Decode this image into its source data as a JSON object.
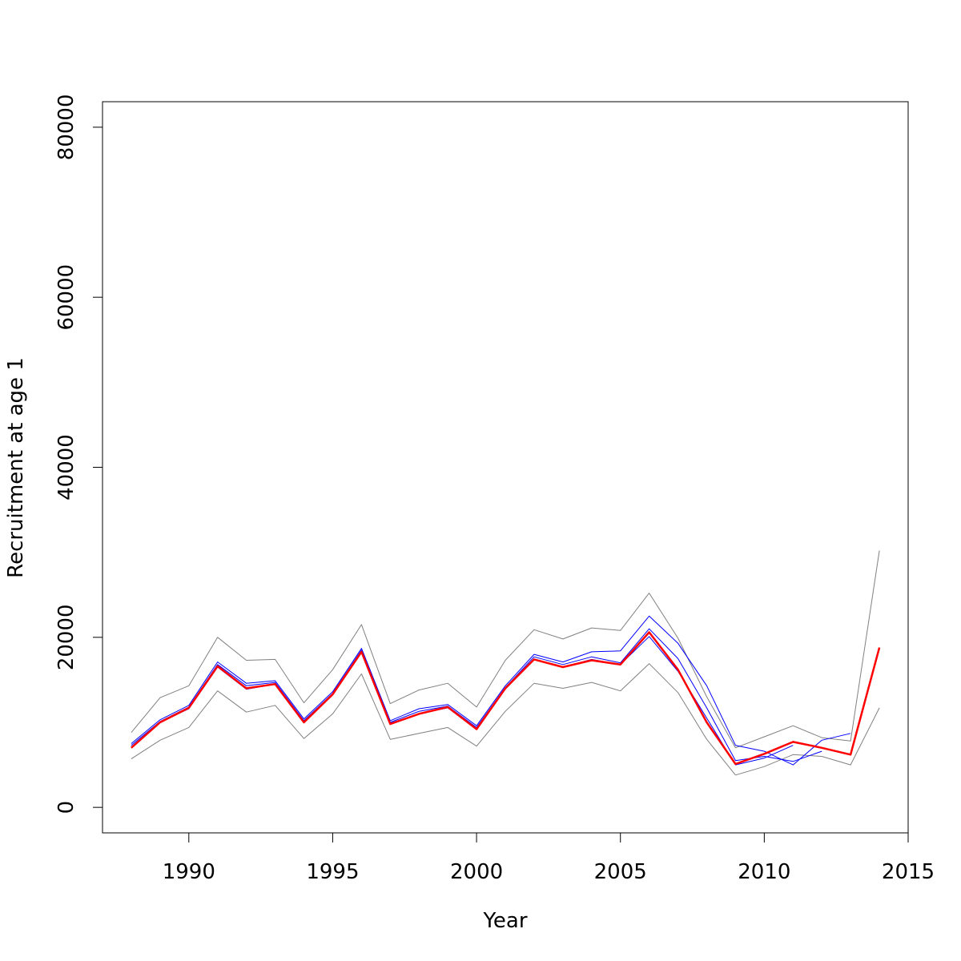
{
  "chart_data": {
    "type": "line",
    "title": "",
    "xlabel": "Year",
    "ylabel": "Recruitment at age 1",
    "xlim": [
      1987,
      2015
    ],
    "ylim": [
      -3000,
      83000
    ],
    "x_ticks": [
      1990,
      1995,
      2000,
      2005,
      2010,
      2015
    ],
    "x_tick_labels": [
      "1990",
      "1995",
      "2000",
      "2005",
      "2010",
      "2015"
    ],
    "y_ticks": [
      0,
      20000,
      40000,
      60000,
      80000
    ],
    "y_tick_labels": [
      "0",
      "20000",
      "40000",
      "60000",
      "80000"
    ],
    "grid": false,
    "legend": "none",
    "series": [
      {
        "color": "#ff0000",
        "x": [
          1988,
          1989,
          1990,
          1991,
          1992,
          1993,
          1994,
          1995,
          1996,
          1997,
          1998,
          1999,
          2000,
          2001,
          2002,
          2003,
          2004,
          2005,
          2006,
          2007,
          2008,
          2009,
          2010,
          2011,
          2012,
          2013,
          2014
        ],
        "values": [
          7000,
          10000,
          11700,
          16600,
          14000,
          14500,
          10000,
          13300,
          18300,
          9800,
          11000,
          11800,
          9200,
          14000,
          17400,
          16500,
          17300,
          16800,
          20600,
          16200,
          10000,
          5100,
          6300,
          7700,
          7000,
          6200,
          18800
        ]
      },
      {
        "color": "#808080",
        "x": [
          1988,
          1989,
          1990,
          1991,
          1992,
          1993,
          1994,
          1995,
          1996,
          1997,
          1998,
          1999,
          2000,
          2001,
          2002,
          2003,
          2004,
          2005,
          2006,
          2007,
          2008,
          2009,
          2010,
          2011,
          2012,
          2013,
          2014
        ],
        "values": [
          8800,
          12900,
          14300,
          20000,
          17300,
          17400,
          12300,
          16200,
          21500,
          12200,
          13800,
          14600,
          11800,
          17300,
          20900,
          19800,
          21100,
          20800,
          25200,
          19900,
          13000,
          7000,
          8300,
          9600,
          8200,
          7800,
          30200
        ]
      },
      {
        "color": "#808080",
        "x": [
          1988,
          1989,
          1990,
          1991,
          1992,
          1993,
          1994,
          1995,
          1996,
          1997,
          1998,
          1999,
          2000,
          2001,
          2002,
          2003,
          2004,
          2005,
          2006,
          2007,
          2008,
          2009,
          2010,
          2011,
          2012,
          2013,
          2014
        ],
        "values": [
          5700,
          7900,
          9400,
          13700,
          11200,
          12000,
          8100,
          11000,
          15700,
          8000,
          8700,
          9400,
          7200,
          11300,
          14600,
          14000,
          14700,
          13700,
          16900,
          13500,
          8000,
          3800,
          4800,
          6200,
          6000,
          5000,
          11700
        ]
      },
      {
        "color": "#0000ff",
        "x": [
          1988,
          1989,
          1990,
          1991,
          1992,
          1993,
          1994,
          1995,
          1996,
          1997,
          1998,
          1999,
          2000,
          2001,
          2002,
          2003,
          2004,
          2005,
          2006,
          2007,
          2008,
          2009,
          2010,
          2011,
          2012,
          2013
        ],
        "values": [
          7500,
          10300,
          12000,
          17100,
          14600,
          14900,
          10400,
          13600,
          18700,
          10200,
          11600,
          12100,
          9600,
          14300,
          18000,
          17100,
          18300,
          18400,
          22500,
          19300,
          14300,
          7300,
          6600,
          5000,
          7900,
          8700
        ]
      },
      {
        "color": "#0000ff",
        "x": [
          1988,
          1989,
          1990,
          1991,
          1992,
          1993,
          1994,
          1995,
          1996,
          1997,
          1998,
          1999,
          2000,
          2001,
          2002,
          2003,
          2004,
          2005,
          2006,
          2007,
          2008,
          2009,
          2010,
          2011,
          2012
        ],
        "values": [
          7300,
          10100,
          11800,
          16800,
          14300,
          14700,
          10200,
          13400,
          18500,
          10000,
          11300,
          11900,
          9400,
          14100,
          17700,
          16800,
          17700,
          17000,
          21000,
          17500,
          11700,
          5500,
          6000,
          5400,
          6600
        ]
      },
      {
        "color": "#0000ff",
        "x": [
          1988,
          1989,
          1990,
          1991,
          1992,
          1993,
          1994,
          1995,
          1996,
          1997,
          1998,
          1999,
          2000,
          2001,
          2002,
          2003,
          2004,
          2005,
          2006,
          2007,
          2008,
          2009,
          2010,
          2011
        ],
        "values": [
          7100,
          10000,
          11600,
          16500,
          13900,
          14500,
          10000,
          13200,
          18200,
          9900,
          11000,
          11700,
          9200,
          13900,
          17400,
          16500,
          17400,
          16800,
          20100,
          16000,
          10500,
          5000,
          5800,
          7300
        ]
      }
    ]
  }
}
